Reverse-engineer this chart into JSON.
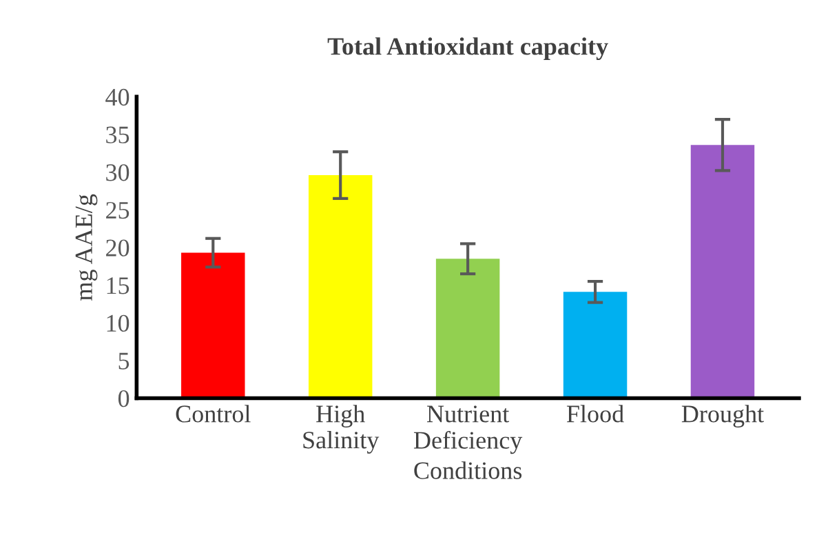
{
  "chart_data": {
    "type": "bar",
    "title": "Total Antioxidant capacity",
    "xlabel": "Conditions",
    "ylabel": "mg AAE/g",
    "categories": [
      "Control",
      "High\nSalinity",
      "Nutrient\nDeficiency",
      "Flood",
      "Drought"
    ],
    "values": [
      19.3,
      29.6,
      18.5,
      14.1,
      33.6
    ],
    "errors": [
      1.9,
      3.1,
      2.0,
      1.4,
      3.4
    ],
    "colors": [
      "#ff0000",
      "#ffff00",
      "#92d050",
      "#00b0f0",
      "#9b5bc8"
    ],
    "ylim": [
      0,
      40
    ],
    "yticks": [
      0,
      5,
      10,
      15,
      20,
      25,
      30,
      35,
      40
    ],
    "grid": false,
    "legend": false
  }
}
